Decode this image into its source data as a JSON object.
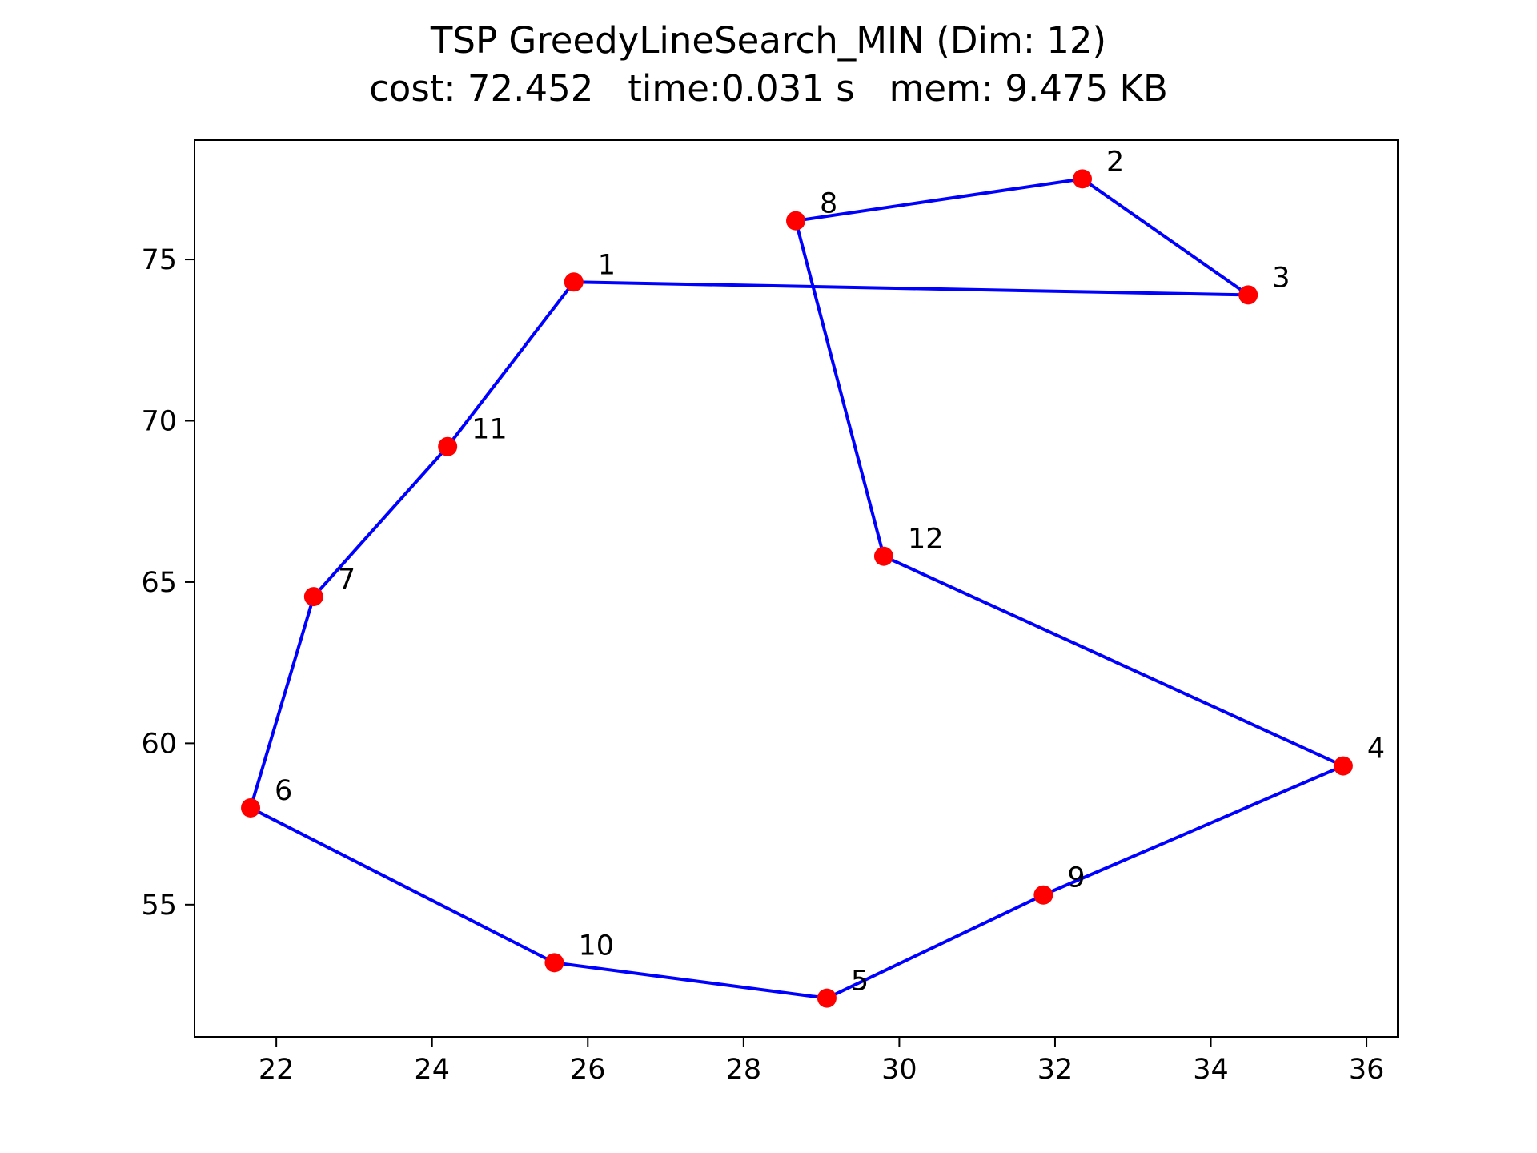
{
  "title_line1": "TSP GreedyLineSearch_MIN (Dim: 12)",
  "title_line2": "cost: 72.452   time:0.031 s   mem: 9.475 KB",
  "colors": {
    "route": "#0000ff",
    "point": "#ff0000",
    "axes": "#000000"
  },
  "chart_data": {
    "type": "line",
    "title": "TSP GreedyLineSearch_MIN (Dim: 12)",
    "subtitle": "cost: 72.452   time:0.031 s   mem: 9.475 KB",
    "xlabel": "",
    "ylabel": "",
    "xlim": [
      20.95,
      36.4
    ],
    "ylim": [
      50.9,
      78.7
    ],
    "xticks": [
      22,
      24,
      26,
      28,
      30,
      32,
      34,
      36
    ],
    "yticks": [
      55,
      60,
      65,
      70,
      75
    ],
    "grid": false,
    "points": [
      {
        "label": "1",
        "x": 25.82,
        "y": 74.3
      },
      {
        "label": "2",
        "x": 32.35,
        "y": 77.5
      },
      {
        "label": "3",
        "x": 34.48,
        "y": 73.9
      },
      {
        "label": "4",
        "x": 35.7,
        "y": 59.3
      },
      {
        "label": "5",
        "x": 29.07,
        "y": 52.1
      },
      {
        "label": "6",
        "x": 21.67,
        "y": 58.0
      },
      {
        "label": "7",
        "x": 22.48,
        "y": 64.55
      },
      {
        "label": "8",
        "x": 28.67,
        "y": 76.2
      },
      {
        "label": "9",
        "x": 31.85,
        "y": 55.3
      },
      {
        "label": "10",
        "x": 25.57,
        "y": 53.2
      },
      {
        "label": "11",
        "x": 24.2,
        "y": 69.2
      },
      {
        "label": "12",
        "x": 29.8,
        "y": 65.8
      }
    ],
    "route": [
      "1",
      "3",
      "2",
      "8",
      "12",
      "4",
      "9",
      "5",
      "10",
      "6",
      "7",
      "11",
      "1"
    ]
  }
}
